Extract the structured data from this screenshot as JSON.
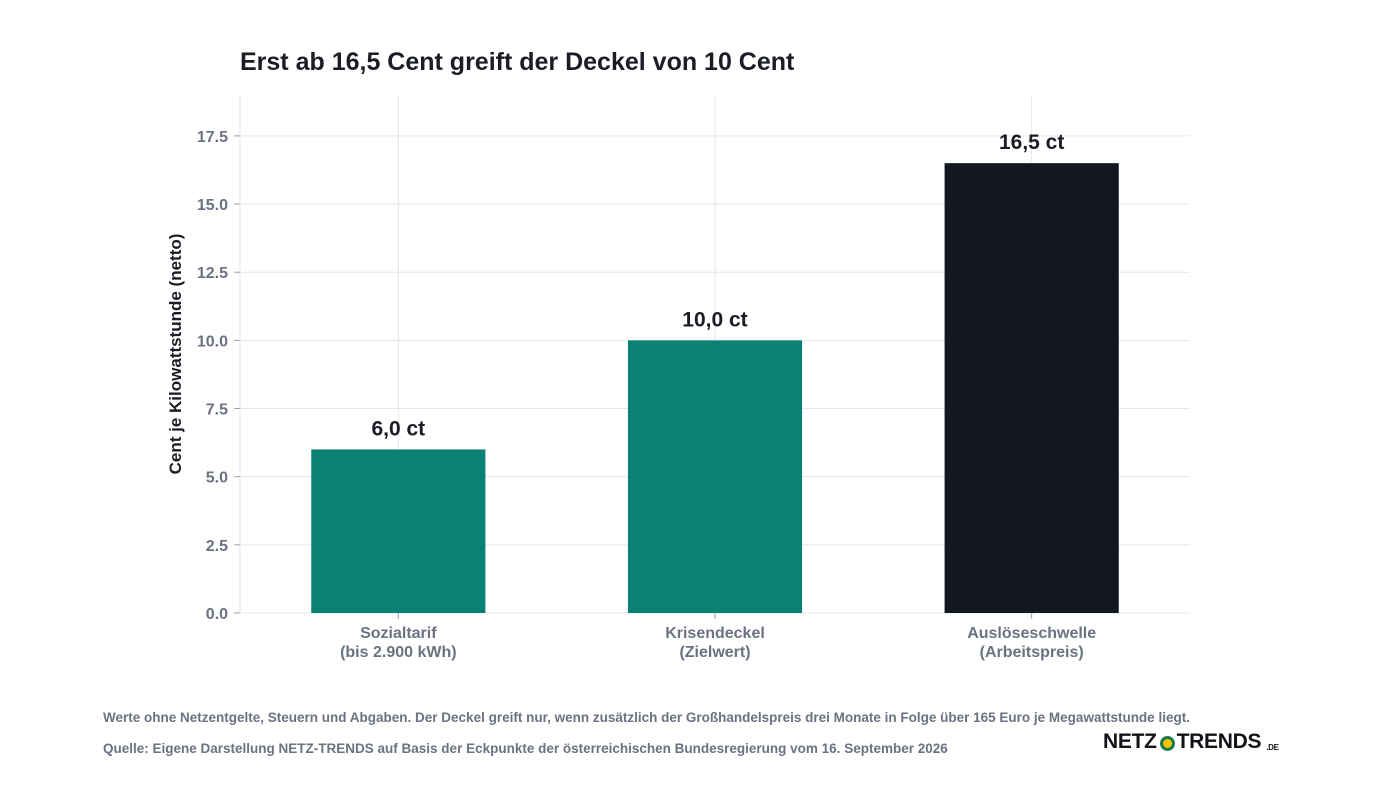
{
  "chart_data": {
    "type": "bar",
    "title": "Erst ab 16,5 Cent greift der Deckel von 10 Cent",
    "ylabel": "Cent je Kilowattstunde (netto)",
    "xlabel": "",
    "ylim": [
      0,
      19
    ],
    "yticks": [
      0,
      2.5,
      5,
      7.5,
      10,
      12.5,
      15,
      17.5
    ],
    "ytick_labels": [
      "0.0",
      "2.5",
      "5.0",
      "7.5",
      "10.0",
      "12.5",
      "15.0",
      "17.5"
    ],
    "grid": true,
    "categories": [
      [
        "Sozialtarif",
        "(bis 2.900 kWh)"
      ],
      [
        "Krisendeckel",
        "(Zielwert)"
      ],
      [
        "Auslöseschwelle",
        "(Arbeitspreis)"
      ]
    ],
    "values": [
      6.0,
      10.0,
      16.5
    ],
    "data_labels": [
      "6,0 ct",
      "10,0 ct",
      "16,5 ct"
    ],
    "colors": [
      "#0b8175",
      "#0b8175",
      "#13171f"
    ]
  },
  "footer": {
    "note": "Werte ohne Netzentgelte, Steuern und Abgaben. Der Deckel greift nur, wenn zusätzlich der Großhandelspreis drei Monate in Folge über 165 Euro je Megawattstunde liegt.",
    "source": "Quelle: Eigene Darstellung NETZ-TRENDS auf Basis der Eckpunkte der österreichischen Bundesregierung vom 16. September 2026"
  },
  "logo": {
    "left": "NETZ",
    "right": "TRENDS",
    "tld": ".DE"
  }
}
